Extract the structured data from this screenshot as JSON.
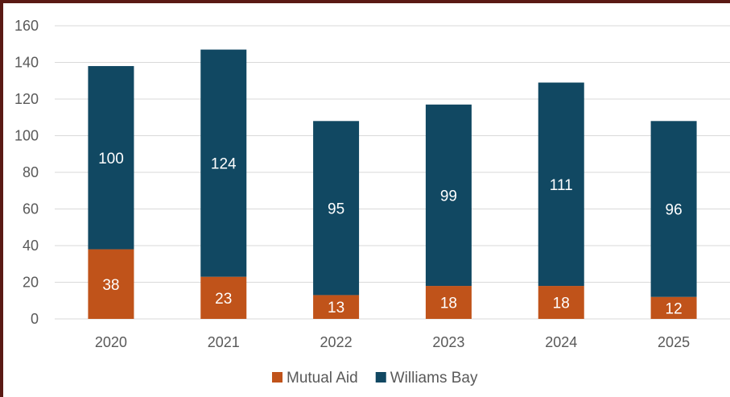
{
  "chart_data": {
    "type": "bar",
    "stacked": true,
    "categories": [
      "2020",
      "2021",
      "2022",
      "2023",
      "2024",
      "2025"
    ],
    "series": [
      {
        "name": "Mutual Aid",
        "color": "#c0531a",
        "values": [
          38,
          23,
          13,
          18,
          18,
          12
        ]
      },
      {
        "name": "Williams Bay",
        "color": "#114862",
        "values": [
          100,
          124,
          95,
          99,
          111,
          96
        ]
      }
    ],
    "ylim": [
      0,
      160
    ],
    "yticks": [
      0,
      20,
      40,
      60,
      80,
      100,
      120,
      140,
      160
    ],
    "grid": true,
    "legend": "bottom",
    "data_labels": true
  }
}
